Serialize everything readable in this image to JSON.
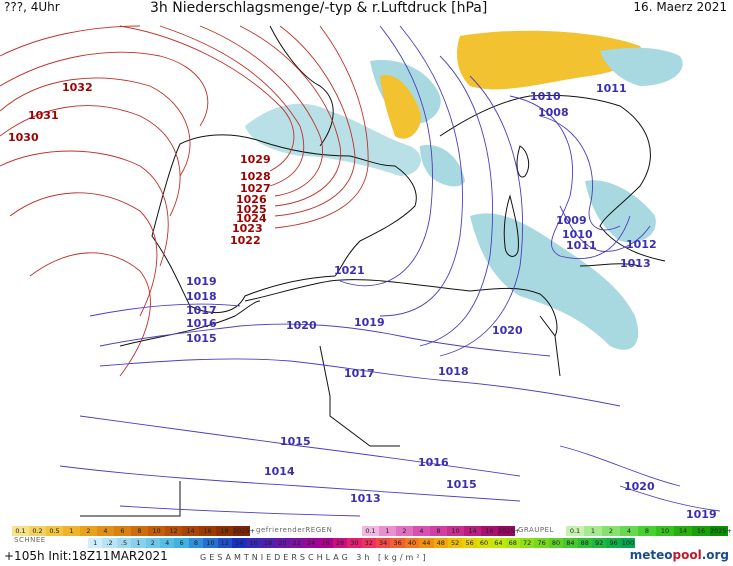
{
  "header": {
    "left": "???, 4Uhr",
    "title": "3h Niederschlagsmenge/-typ & r.Luftdruck [hPa]",
    "date": "16. Maerz 2021"
  },
  "isobar_labels_red": [
    "1032",
    "1031",
    "1030",
    "1029",
    "1028",
    "1027",
    "1026",
    "1025",
    "1024",
    "1023",
    "1022"
  ],
  "isobar_labels_blue": [
    "1011",
    "1010",
    "1008",
    "1009",
    "1010",
    "1011",
    "1012",
    "1013",
    "1021",
    "1019",
    "1018",
    "1017",
    "1016",
    "1015",
    "1020",
    "1019",
    "1020",
    "1017",
    "1018",
    "1015",
    "1014",
    "1016",
    "1015",
    "1013",
    "1020",
    "1019"
  ],
  "legend": {
    "rain_values": [
      "0.1",
      "0.2",
      "0.5",
      "1",
      "2",
      "4",
      "6",
      "8",
      "10",
      "12",
      "14",
      "16",
      "18",
      "2025+"
    ],
    "freezing_label": "gefrierenderREGEN",
    "freezing_values": [
      "0.1",
      "1",
      "2",
      "4",
      "8",
      "10",
      "14",
      "16",
      "2025+"
    ],
    "graupel_label": "GRAUPEL",
    "graupel_values": [
      "0.1",
      "1",
      "2",
      "4",
      "8",
      "10",
      "14",
      "16",
      "2025+"
    ],
    "snow_label": "SCHNEE",
    "snow_values": [
      "1",
      ".2",
      ".5",
      "1",
      "2",
      "4",
      "6",
      "8",
      "10",
      "12",
      "14",
      "16",
      "18",
      "20",
      "22",
      "24",
      "26",
      "28",
      "30",
      "32",
      "34",
      "36",
      "40",
      "44",
      "48",
      "52",
      "56",
      "60",
      "64",
      "68",
      "72",
      "76",
      "80",
      "84",
      "88",
      "92",
      "96",
      "100"
    ]
  },
  "footer": {
    "run": "+105h  Init:18Z11MAR2021",
    "total_label": "GESAMTNIEDERSCHLAG 3h [kg/m²]",
    "logo_a": "meteo",
    "logo_b": "pool",
    "logo_c": ".org"
  },
  "colors": {
    "isobar_high": "#c0302a",
    "isobar_low": "#4b3fc0",
    "rain_light": "#a8d8e0",
    "snow_yellow": "#f2c230"
  }
}
